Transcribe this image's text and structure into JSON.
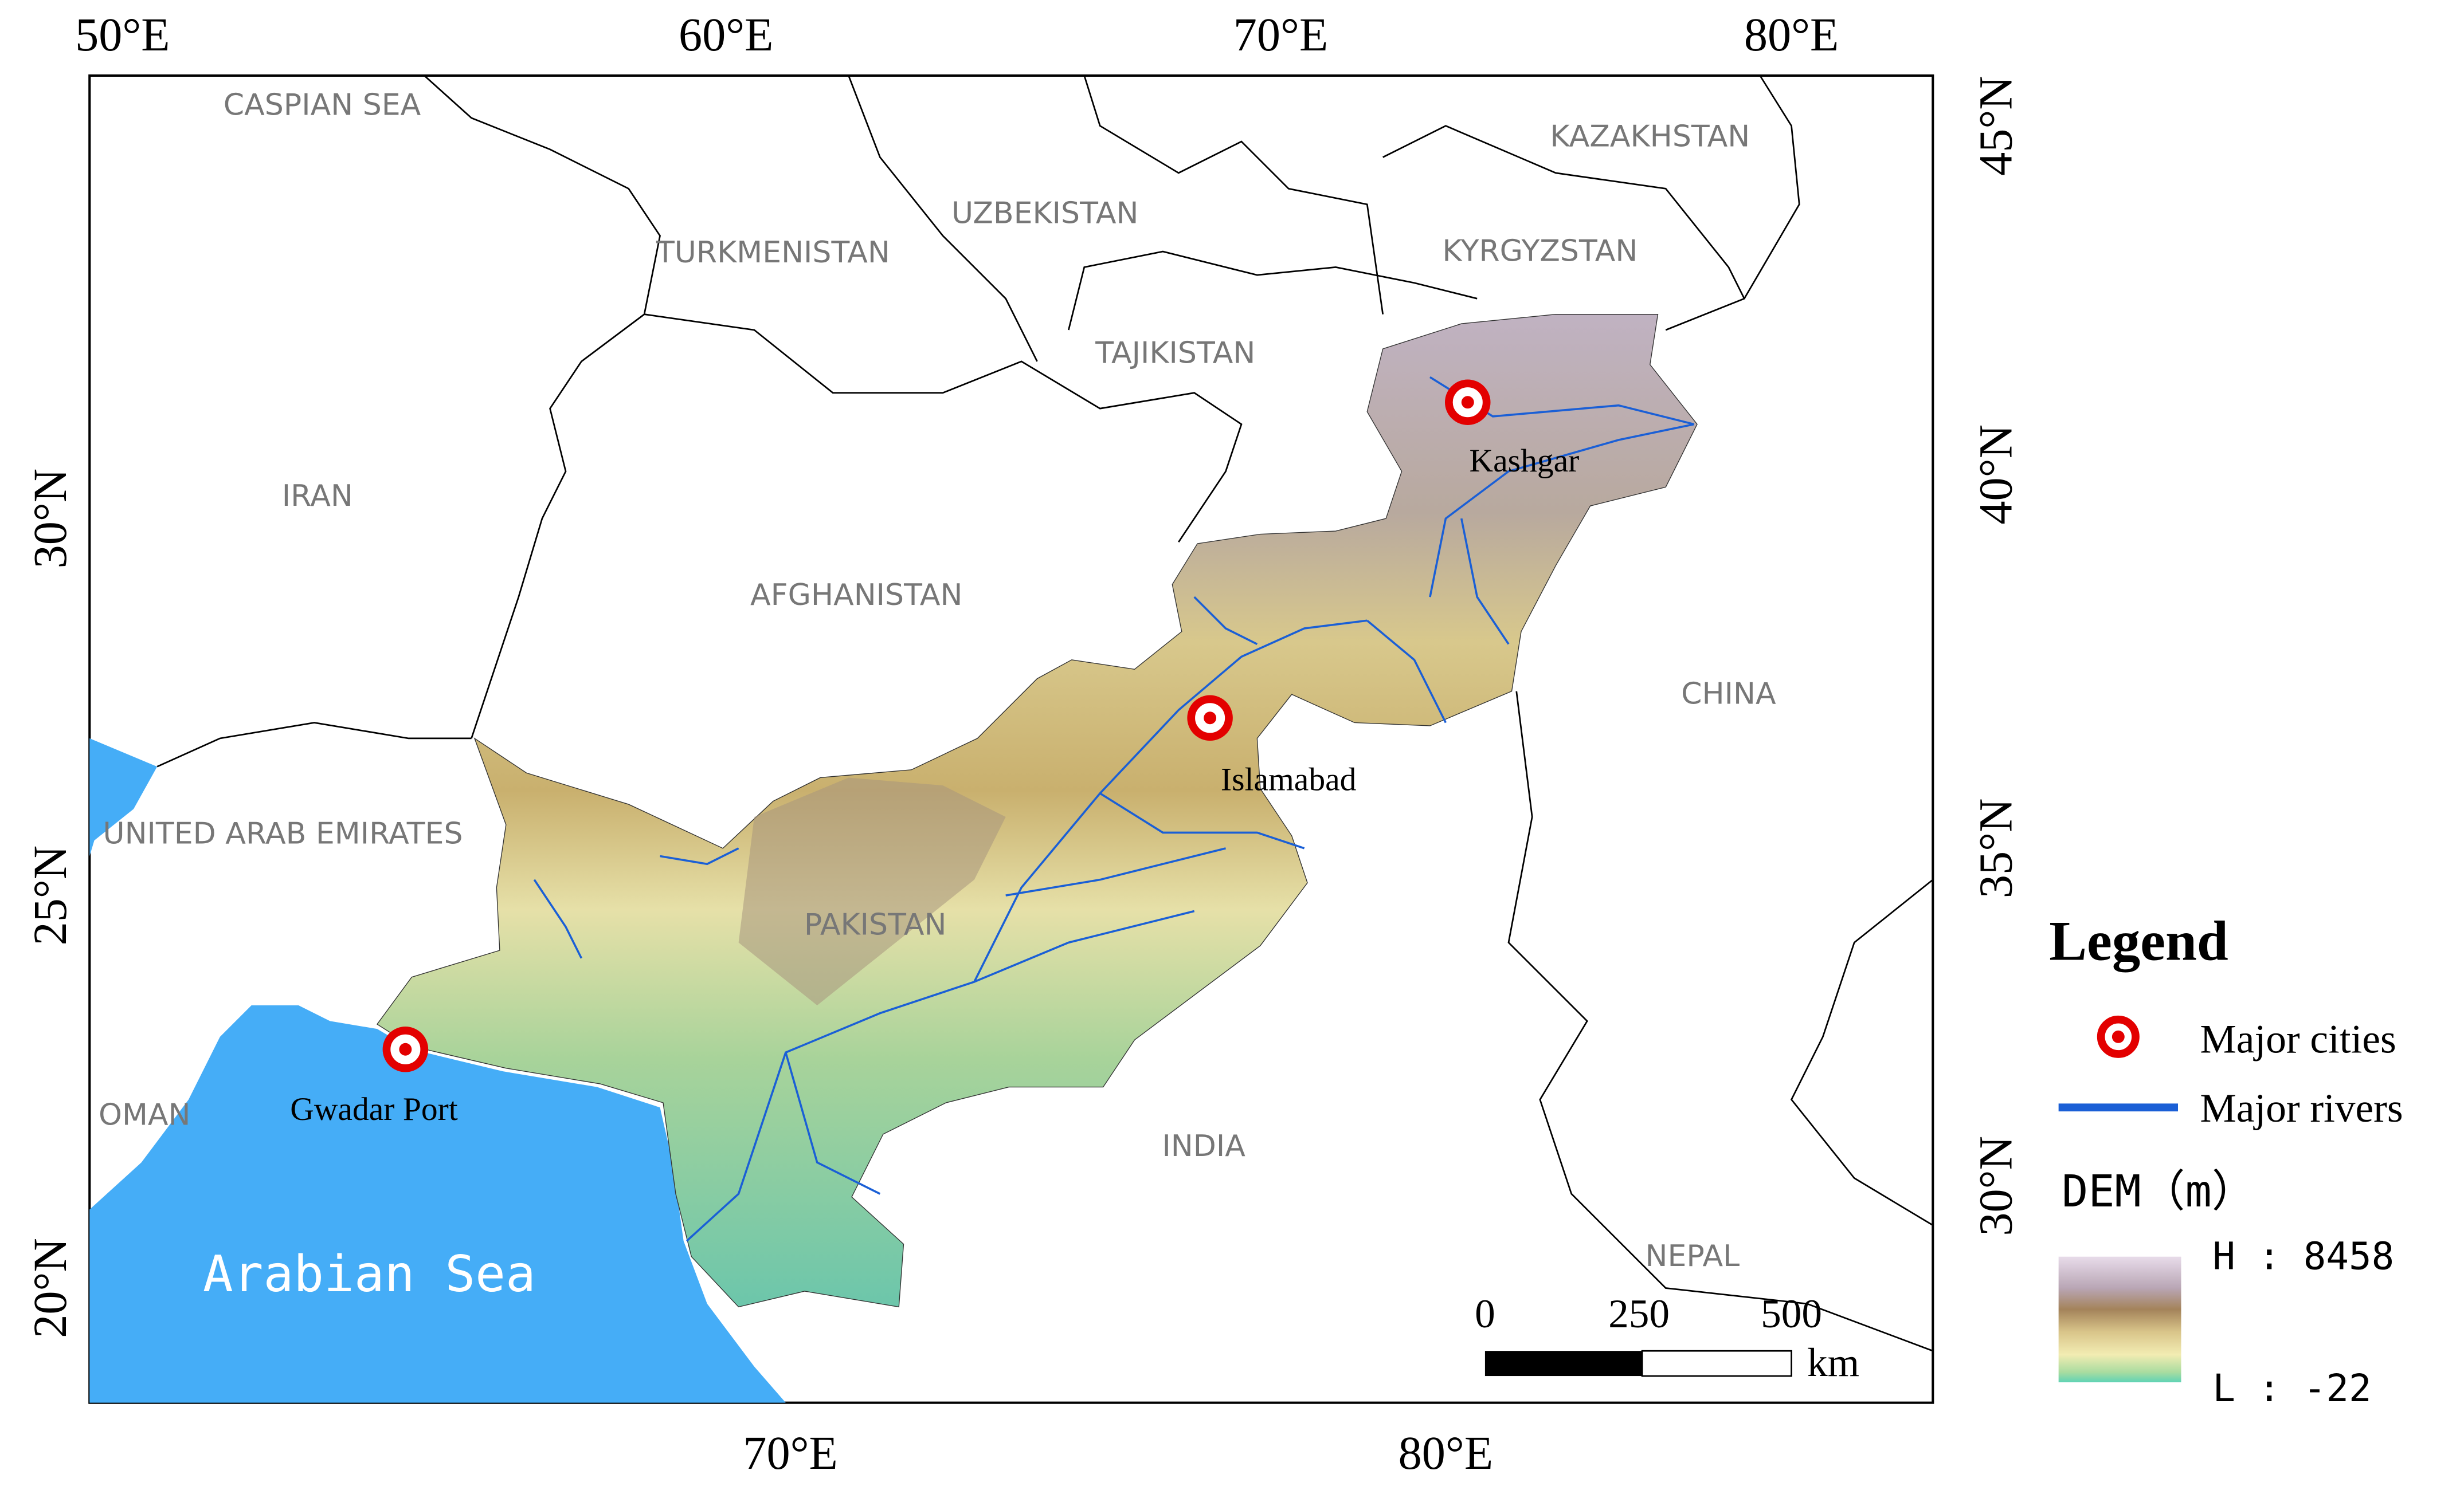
{
  "map": {
    "lon_top": [
      "50°E",
      "60°E",
      "70°E",
      "80°E"
    ],
    "lon_bottom": [
      "70°E",
      "80°E"
    ],
    "lat_left": [
      "30°N",
      "25°N",
      "20°N"
    ],
    "lat_right": [
      "45°N",
      "40°N",
      "35°N",
      "30°N"
    ],
    "countries": [
      "CASPIAN SEA",
      "KAZAKHSTAN",
      "UZBEKISTAN",
      "TURKMENISTAN",
      "KYRGYZSTAN",
      "TAJIKISTAN",
      "IRAN",
      "AFGHANISTAN",
      "CHINA",
      "UNITED ARAB EMIRATES",
      "PAKISTAN",
      "OMAN",
      "INDIA",
      "NEPAL"
    ],
    "sea": "Arabian Sea",
    "cities": [
      "Kashgar",
      "Islamabad",
      "Gwadar Port"
    ],
    "scale_bar": {
      "ticks": [
        0,
        250,
        500
      ],
      "unit": "km"
    }
  },
  "legend": {
    "title": "Legend",
    "items": [
      "Major cities",
      "Major rivers"
    ],
    "dem_title": "DEM（m）",
    "dem_high": "H : 8458",
    "dem_low": "L : -22"
  }
}
